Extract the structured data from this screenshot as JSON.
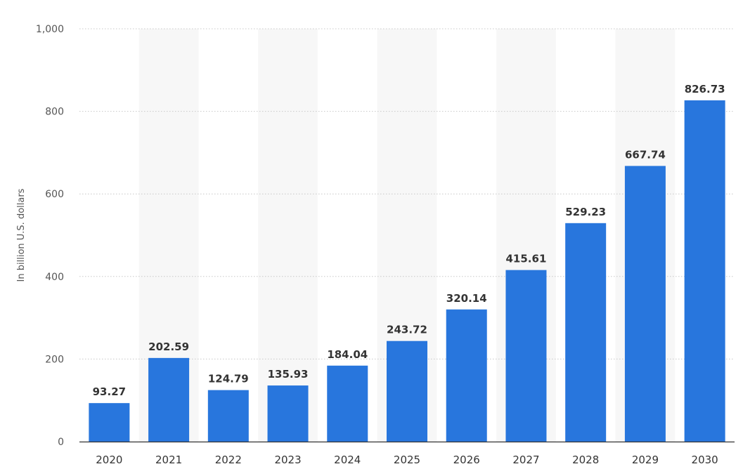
{
  "chart_data": {
    "type": "bar",
    "title": "",
    "xlabel": "",
    "ylabel": "In billion U.S. dollars",
    "categories": [
      "2020",
      "2021",
      "2022",
      "2023",
      "2024",
      "2025",
      "2026",
      "2027",
      "2028",
      "2029",
      "2030"
    ],
    "values": [
      93.27,
      202.59,
      124.79,
      135.93,
      184.04,
      243.72,
      320.14,
      415.61,
      529.23,
      667.74,
      826.73
    ],
    "value_labels": [
      "93.27",
      "202.59",
      "124.79",
      "135.93",
      "184.04",
      "243.72",
      "320.14",
      "415.61",
      "529.23",
      "667.74",
      "826.73"
    ],
    "ylim": [
      0,
      1000
    ],
    "yticks": [
      0,
      200,
      400,
      600,
      800,
      1000
    ],
    "ytick_labels": [
      "0",
      "200",
      "400",
      "600",
      "800",
      "1,000"
    ],
    "grid": "horizontal dotted",
    "legend": "none",
    "colors": {
      "bar": "#2876DD",
      "alt_band": "#F7F7F7",
      "grid": "#C8C8C8",
      "axis": "#333333"
    }
  }
}
